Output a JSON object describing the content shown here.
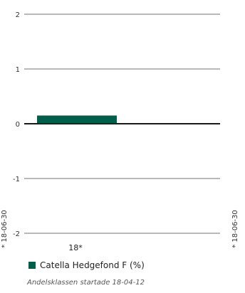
{
  "chart_data": {
    "type": "bar",
    "categories": [
      "18*"
    ],
    "series": [
      {
        "name": "Catella Hedgefond F (%)",
        "values": [
          0.15
        ],
        "color": "#005f4b"
      }
    ],
    "ylim": [
      -2,
      2
    ],
    "yticks": [
      2,
      1,
      0,
      -1,
      -2
    ],
    "ytick_labels": [
      "2",
      "1",
      "0",
      "-1",
      "-2"
    ],
    "grid": true,
    "left_side_label": "* 18-06-30",
    "right_side_label": "* 18-06-30",
    "legend_position": "bottom-left",
    "footnote": "Andelsklassen startade 18-04-12"
  }
}
